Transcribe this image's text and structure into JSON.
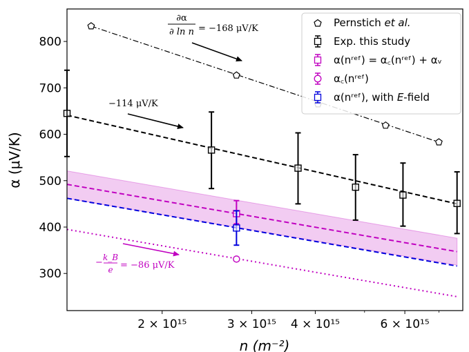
{
  "chart_data": {
    "type": "scatter",
    "xlabel": "n (m⁻²)",
    "ylabel": "α (μV/K)",
    "x_scale": "log",
    "xlim": [
      1300000000000000.0,
      7800000000000000.0
    ],
    "ylim": [
      220,
      870
    ],
    "x_ticks": [
      {
        "value": 2000000000000000.0,
        "label": "2 × 10¹⁵"
      },
      {
        "value": 3000000000000000.0,
        "label": "3 × 10¹⁵"
      },
      {
        "value": 4000000000000000.0,
        "label": "4 × 10¹⁵"
      },
      {
        "value": 6000000000000000.0,
        "label": "6 × 10¹⁵"
      }
    ],
    "y_ticks": [
      300,
      400,
      500,
      600,
      700,
      800
    ],
    "grid": false,
    "legend_position": "top-right",
    "legend": [
      {
        "id": "pernstich",
        "label_main": "Pernstich ",
        "label_italic": "et al.",
        "label_tail": "",
        "marker": "pentagon",
        "color": "#000000"
      },
      {
        "id": "exp",
        "label_main": "Exp. this study",
        "label_italic": "",
        "label_tail": "",
        "marker": "square-errorbar",
        "color": "#000000"
      },
      {
        "id": "alpha_total",
        "label_main": "α(nʳᵉᶠ) = α꜀(nʳᵉᶠ) + αᵥ",
        "label_italic": "",
        "label_tail": "",
        "marker": "square-errorbar",
        "color": "#c000c0"
      },
      {
        "id": "alpha_c",
        "label_main": "α꜀(nʳᵉᶠ)",
        "label_italic": "",
        "label_tail": "",
        "marker": "circle-errorbar",
        "color": "#c000c0"
      },
      {
        "id": "alpha_efield",
        "label_main": "α(nʳᵉᶠ), with ",
        "label_italic": "E",
        "label_tail": "-field",
        "marker": "square-errorbar",
        "color": "#0000dd"
      }
    ],
    "series": [
      {
        "name": "Pernstich et al.",
        "marker": "pentagon",
        "line": "dashdot",
        "color": "#000000",
        "x": [
          1450000000000000.0,
          2800000000000000.0,
          4050000000000000.0,
          5500000000000000.0,
          7000000000000000.0
        ],
        "y": [
          833,
          727,
          665,
          619,
          583
        ]
      },
      {
        "name": "Exp. this study",
        "marker": "square",
        "color": "#000000",
        "x": [
          1300000000000000.0,
          2500000000000000.0,
          3700000000000000.0,
          4800000000000000.0,
          5950000000000000.0,
          7600000000000000.0
        ],
        "y": [
          645,
          566,
          527,
          486,
          469,
          451
        ],
        "yerr_low": [
          93,
          83,
          77,
          71,
          67,
          65
        ],
        "yerr_high": [
          93,
          82,
          76,
          70,
          69,
          68
        ]
      },
      {
        "name": "α(nʳᵉᶠ) = α꜀(nʳᵉᶠ) + αᵥ",
        "marker": "square",
        "color": "#c000c0",
        "x": [
          2800000000000000.0
        ],
        "y": [
          429
        ],
        "yerr_low": [
          22
        ],
        "yerr_high": [
          28
        ]
      },
      {
        "name": "α꜀(nʳᵉᶠ)",
        "marker": "circle",
        "color": "#c000c0",
        "x": [
          2800000000000000.0
        ],
        "y": [
          331
        ],
        "yerr_low": [
          4
        ],
        "yerr_high": [
          4
        ]
      },
      {
        "name": "α(nʳᵉᶠ), with E-field",
        "marker": "square",
        "color": "#0000dd",
        "x": [
          2800000000000000.0
        ],
        "y": [
          398
        ],
        "yerr_low": [
          37
        ],
        "yerr_high": [
          37
        ]
      }
    ],
    "lines": [
      {
        "color": "#000000",
        "style": "dashdot",
        "x": [
          1450000000000000.0,
          7000000000000000.0
        ],
        "y": [
          833,
          583
        ]
      },
      {
        "color": "#000000",
        "style": "dashed",
        "x": [
          1300000000000000.0,
          7600000000000000.0
        ],
        "y": [
          641,
          450
        ]
      },
      {
        "color": "#c000c0",
        "style": "dashed",
        "x": [
          1300000000000000.0,
          7600000000000000.0
        ],
        "y": [
          492,
          347
        ]
      },
      {
        "color": "#0000dd",
        "style": "dashed",
        "x": [
          1300000000000000.0,
          7600000000000000.0
        ],
        "y": [
          462,
          316
        ]
      },
      {
        "color": "#c000c0",
        "style": "dotted",
        "x": [
          1300000000000000.0,
          7600000000000000.0
        ],
        "y": [
          395,
          250
        ]
      }
    ],
    "band": {
      "color": "#c000c0",
      "x": [
        1300000000000000.0,
        7600000000000000.0
      ],
      "y_low": [
        462,
        318
      ],
      "y_high": [
        521,
        376
      ]
    },
    "annotations": [
      {
        "id": "slope1",
        "numerator": "∂α",
        "denominator": "∂ ln n",
        "value_text": "= −168 μV/K",
        "color": "#000000"
      },
      {
        "id": "slope2",
        "text": "−114 μV/K",
        "color": "#000000"
      },
      {
        "id": "slope3",
        "numerator": "k_B",
        "denominator": "e",
        "value_text": "= −86 μV/K",
        "prefix": "−",
        "color": "#c000c0"
      }
    ]
  }
}
